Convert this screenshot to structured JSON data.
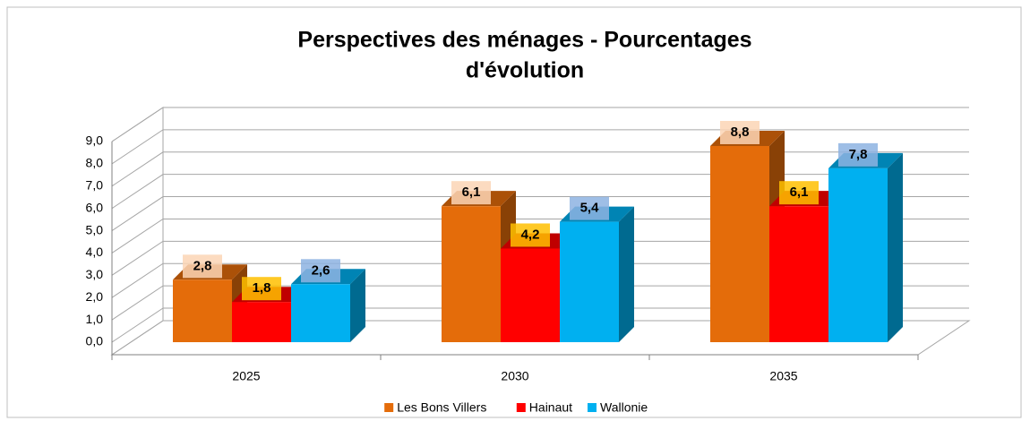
{
  "chart_data": {
    "type": "bar3d",
    "title": "Perspectives des ménages - Pourcentages",
    "subtitle": "d'évolution",
    "categories": [
      "2025",
      "2030",
      "2035"
    ],
    "series": [
      {
        "name": "Les Bons Villers",
        "color": "#E46C0A",
        "values": [
          2.8,
          6.1,
          8.8
        ],
        "value_labels": [
          "2,8",
          "6,1",
          "8,8"
        ]
      },
      {
        "name": "Hainaut",
        "color": "#FF0000",
        "values": [
          1.8,
          4.2,
          6.1
        ],
        "value_labels": [
          "1,8",
          "4,2",
          "6,1"
        ]
      },
      {
        "name": "Wallonie",
        "color": "#00B0F0",
        "values": [
          2.6,
          5.4,
          7.8
        ],
        "value_labels": [
          "2,6",
          "5,4",
          "7,8"
        ]
      }
    ],
    "ylim": [
      0,
      9
    ],
    "yticks": [
      {
        "value": 0,
        "label": "0,0"
      },
      {
        "value": 1,
        "label": "1,0"
      },
      {
        "value": 2,
        "label": "2,0"
      },
      {
        "value": 3,
        "label": "3,0"
      },
      {
        "value": 4,
        "label": "4,0"
      },
      {
        "value": 5,
        "label": "5,0"
      },
      {
        "value": 6,
        "label": "6,0"
      },
      {
        "value": 7,
        "label": "7,0"
      },
      {
        "value": 8,
        "label": "8,0"
      },
      {
        "value": 9,
        "label": "9,0"
      }
    ],
    "grid": true,
    "legend": "bottom"
  }
}
